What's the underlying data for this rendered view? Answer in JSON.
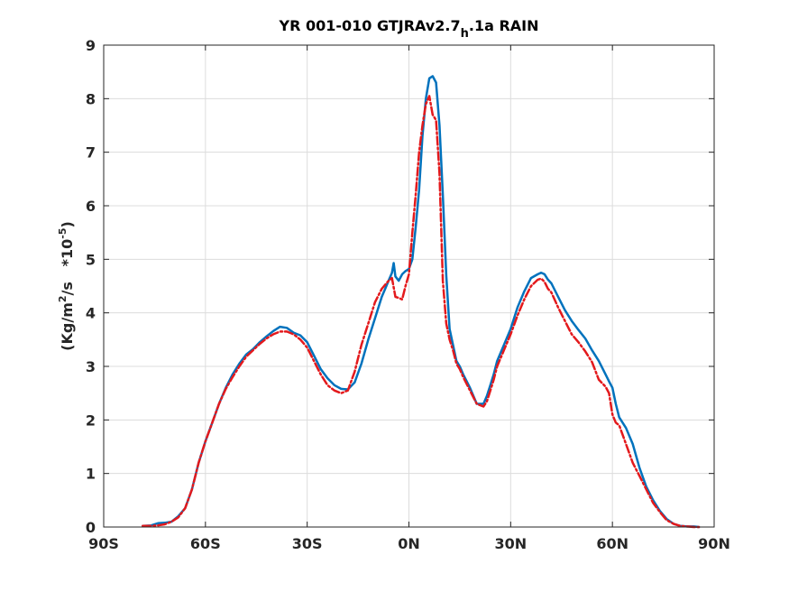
{
  "chart_data": {
    "type": "line",
    "title": {
      "main": "YR 001-010 GTJRAv2.7",
      "sub": "h",
      "suffix": ".1a RAIN"
    },
    "xlabel": "",
    "ylabel": {
      "units_prefix": "(Kg/m",
      "units_exp": "2",
      "units_mid": "/s   *10",
      "scale_exp": "-5",
      "close": ")"
    },
    "xlim": [
      -90,
      90
    ],
    "ylim": [
      0,
      9
    ],
    "grid": true,
    "x_ticks": [
      -90,
      -60,
      -30,
      0,
      30,
      60,
      90
    ],
    "x_tick_labels": [
      "90S",
      "60S",
      "30S",
      "0N",
      "30N",
      "60N",
      "90N"
    ],
    "y_ticks": [
      0,
      1,
      2,
      3,
      4,
      5,
      6,
      7,
      8,
      9
    ],
    "y_tick_labels": [
      "0",
      "1",
      "2",
      "3",
      "4",
      "5",
      "6",
      "7",
      "8",
      "9"
    ],
    "series": [
      {
        "color": "#0072BD",
        "style": "solid",
        "x": [
          -78.5,
          -76,
          -74,
          -72,
          -70,
          -68,
          -66,
          -64,
          -62,
          -60,
          -58,
          -56,
          -54,
          -52,
          -50,
          -48,
          -46,
          -44,
          -42,
          -40,
          -38,
          -36,
          -34,
          -32,
          -30,
          -28,
          -26,
          -24,
          -22,
          -20,
          -18,
          -16,
          -14,
          -12,
          -10,
          -8,
          -7,
          -6,
          -5,
          -4.5,
          -4,
          -3,
          -2,
          -1,
          0,
          1,
          2,
          3,
          4,
          5,
          6,
          7,
          8,
          9,
          10,
          11,
          12,
          13,
          14,
          15,
          16,
          18,
          20,
          22,
          23,
          24,
          25,
          26,
          28,
          30,
          32,
          34,
          36,
          38,
          39,
          40,
          41,
          42,
          44,
          46,
          48,
          50,
          52,
          54,
          56,
          58,
          59,
          60,
          61,
          62,
          64,
          66,
          68,
          70,
          72,
          74,
          76,
          78,
          80,
          82,
          84,
          85.5
        ],
        "y": [
          0.02,
          0.03,
          0.07,
          0.08,
          0.1,
          0.2,
          0.35,
          0.7,
          1.2,
          1.6,
          1.95,
          2.3,
          2.6,
          2.85,
          3.05,
          3.22,
          3.32,
          3.45,
          3.56,
          3.66,
          3.74,
          3.72,
          3.63,
          3.58,
          3.45,
          3.2,
          2.95,
          2.78,
          2.65,
          2.58,
          2.57,
          2.7,
          3.05,
          3.5,
          3.9,
          4.3,
          4.45,
          4.6,
          4.75,
          4.93,
          4.68,
          4.6,
          4.72,
          4.78,
          4.82,
          5.0,
          5.6,
          6.3,
          7.3,
          8.0,
          8.38,
          8.42,
          8.3,
          7.5,
          6.2,
          4.7,
          3.7,
          3.4,
          3.1,
          3.0,
          2.85,
          2.6,
          2.3,
          2.3,
          2.45,
          2.65,
          2.85,
          3.1,
          3.4,
          3.7,
          4.1,
          4.4,
          4.65,
          4.72,
          4.75,
          4.72,
          4.62,
          4.55,
          4.3,
          4.05,
          3.85,
          3.68,
          3.52,
          3.3,
          3.1,
          2.85,
          2.72,
          2.6,
          2.3,
          2.05,
          1.85,
          1.55,
          1.1,
          0.75,
          0.5,
          0.3,
          0.15,
          0.06,
          0.02,
          0.01,
          0.01,
          0.0
        ]
      },
      {
        "color": "#E3191C",
        "style": "dashed",
        "x": [
          -78.5,
          -76,
          -74,
          -72,
          -70,
          -68,
          -66,
          -64,
          -62,
          -60,
          -58,
          -56,
          -54,
          -52,
          -50,
          -48,
          -46,
          -44,
          -42,
          -40,
          -38,
          -36,
          -34,
          -32,
          -30,
          -28,
          -26,
          -24,
          -22,
          -20,
          -18,
          -16,
          -14,
          -12,
          -10,
          -8,
          -6,
          -5,
          -4,
          -3,
          -2,
          -1,
          0,
          1,
          2,
          3,
          4,
          5,
          6,
          7,
          8,
          9,
          10,
          11,
          12,
          13,
          14,
          15,
          16,
          18,
          20,
          22,
          23,
          24,
          25,
          26,
          28,
          30,
          32,
          34,
          36,
          38,
          39,
          40,
          41,
          42,
          44,
          46,
          48,
          50,
          52,
          54,
          56,
          58,
          59,
          60,
          61,
          62,
          64,
          66,
          68,
          70,
          72,
          74,
          76,
          78,
          80,
          82,
          84,
          85.5
        ],
        "y": [
          0.02,
          0.02,
          0.03,
          0.05,
          0.1,
          0.18,
          0.35,
          0.7,
          1.2,
          1.6,
          1.95,
          2.3,
          2.58,
          2.8,
          3.0,
          3.18,
          3.3,
          3.42,
          3.52,
          3.6,
          3.65,
          3.65,
          3.6,
          3.5,
          3.35,
          3.1,
          2.85,
          2.65,
          2.55,
          2.5,
          2.55,
          2.9,
          3.4,
          3.8,
          4.2,
          4.45,
          4.6,
          4.65,
          4.3,
          4.28,
          4.25,
          4.5,
          4.72,
          5.5,
          6.2,
          7.0,
          7.5,
          7.9,
          8.05,
          7.7,
          7.6,
          6.6,
          4.6,
          3.8,
          3.5,
          3.3,
          3.05,
          2.95,
          2.8,
          2.55,
          2.3,
          2.25,
          2.35,
          2.55,
          2.75,
          3.0,
          3.3,
          3.6,
          3.95,
          4.25,
          4.5,
          4.62,
          4.64,
          4.58,
          4.45,
          4.38,
          4.1,
          3.85,
          3.6,
          3.45,
          3.28,
          3.08,
          2.75,
          2.62,
          2.5,
          2.1,
          1.95,
          1.9,
          1.55,
          1.2,
          0.95,
          0.7,
          0.45,
          0.28,
          0.13,
          0.06,
          0.02,
          0.01,
          0.0,
          0.0
        ]
      }
    ]
  }
}
